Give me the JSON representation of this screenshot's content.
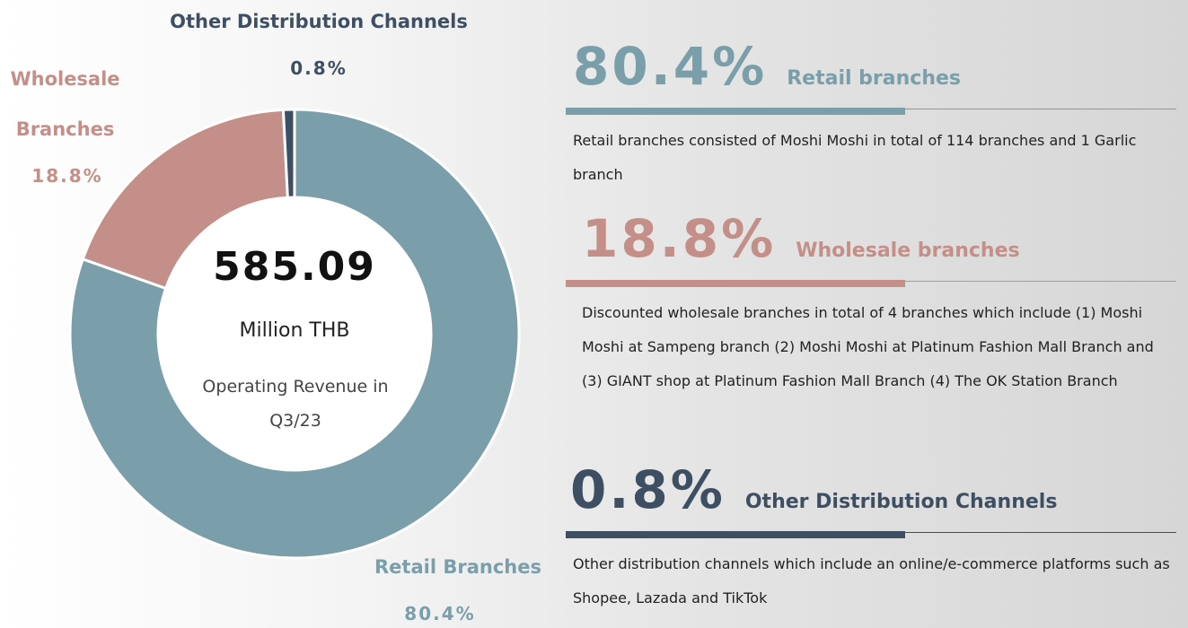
{
  "chart_data": {
    "type": "donut",
    "categories": [
      "Retail Branches",
      "Wholesale Branches",
      "Other Distribution Channels"
    ],
    "values": [
      80.4,
      18.8,
      0.8
    ],
    "value_labels": [
      "80.4%",
      "18.8%",
      "0.8%"
    ],
    "colors": [
      "#7a9faa",
      "#c48f88",
      "#3f4f63"
    ],
    "center_value": "585.09",
    "center_unit": "Million THB",
    "center_caption": "Operating Revenue in Q3/23"
  },
  "details": [
    {
      "title": "Retail branches",
      "text": "Retail branches consisted of Moshi Moshi in total of 114 branches and 1 Garlic branch"
    },
    {
      "title": "Wholesale branches",
      "text": "Discounted wholesale branches in total of 4 branches which include (1) Moshi Moshi at Sampeng branch (2) Moshi Moshi at Platinum Fashion Mall Branch and (3) GIANT shop at Platinum Fashion Mall Branch (4) The OK Station Branch"
    },
    {
      "title": "Other Distribution Channels",
      "text": "Other distribution channels which include an online/e-commerce platforms such as Shopee, Lazada and TikTok"
    }
  ]
}
